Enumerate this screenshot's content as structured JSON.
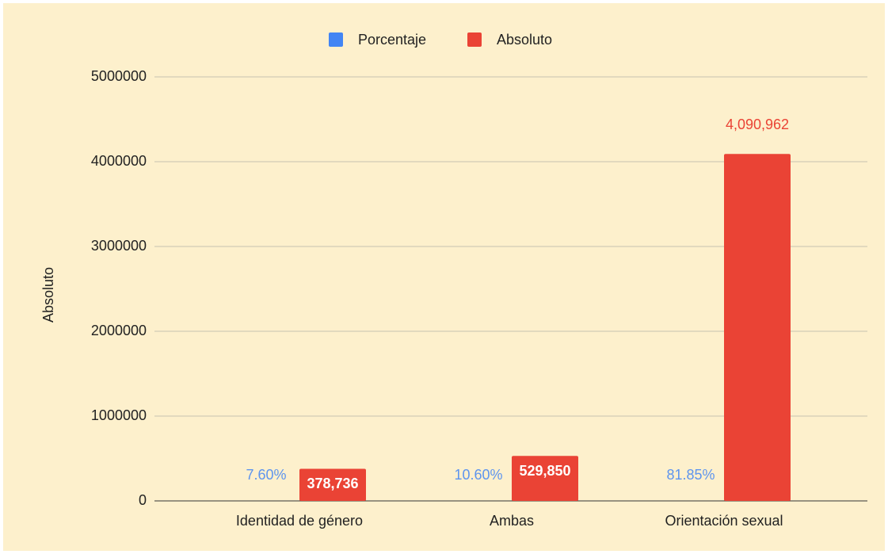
{
  "chart_data": {
    "type": "bar",
    "categories": [
      "Identidad de género",
      "Ambas",
      "Orientación sexual"
    ],
    "series": [
      {
        "name": "Porcentaje",
        "color": "#4285f4",
        "values": [
          7.6,
          10.6,
          81.85
        ],
        "value_labels": [
          "7.60%",
          "10.60%",
          "81.85%"
        ]
      },
      {
        "name": "Absoluto",
        "color": "#ea4335",
        "values": [
          378736,
          529850,
          4090962
        ],
        "value_labels": [
          "378,736",
          "529,850",
          "4,090,962"
        ]
      }
    ],
    "y_axis_label": "Absoluto",
    "ylim": [
      0,
      5000000
    ],
    "yticks": [
      0,
      1000000,
      2000000,
      3000000,
      4000000,
      5000000
    ],
    "grid": true,
    "legend": "top"
  }
}
